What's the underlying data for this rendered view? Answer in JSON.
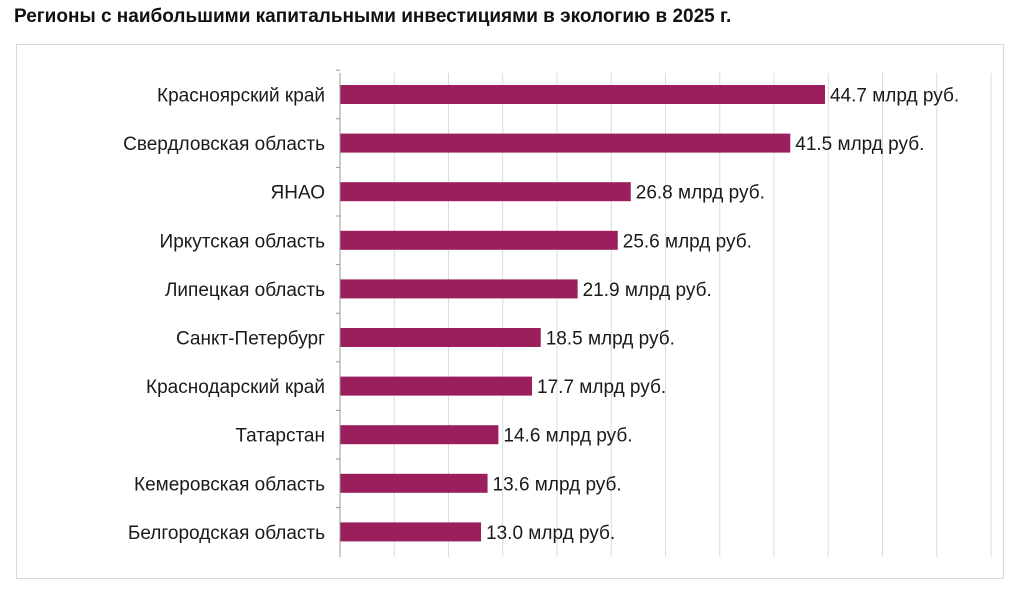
{
  "title": "Регионы с наибольшими капитальными инвестициями в экологию в 2025 г.",
  "chart_data": {
    "type": "bar",
    "orientation": "horizontal",
    "categories": [
      "Красноярский край",
      "Свердловская область",
      "ЯНАО",
      "Иркутская область",
      "Липецкая область",
      "Санкт-Петербург",
      "Краснодарский край",
      "Татарстан",
      "Кемеровская область",
      "Белгородская область"
    ],
    "values": [
      44.7,
      41.5,
      26.8,
      25.6,
      21.9,
      18.5,
      17.7,
      14.6,
      13.6,
      13.0
    ],
    "data_labels": [
      "44.7 млрд руб.",
      "41.5 млрд руб.",
      "26.8 млрд руб.",
      "25.6 млрд руб.",
      "21.9 млрд руб.",
      "18.5 млрд руб.",
      "17.7 млрд руб.",
      "14.6 млрд руб.",
      "13.6 млрд руб.",
      "13.0 млрд руб."
    ],
    "xlim": [
      0,
      65
    ],
    "grid_step": 5,
    "grid": true,
    "bar_color": "#9b1f5c",
    "gridline_color": "#dcdcdc"
  }
}
